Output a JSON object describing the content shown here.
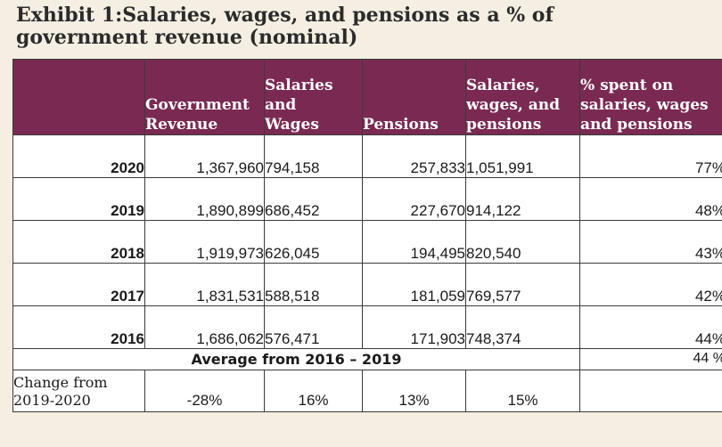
{
  "title": {
    "line1": "Exhibit 1:Salaries, wages, and pensions as a % of",
    "line2": "government revenue (nominal)"
  },
  "colors": {
    "header_background": "#7a2a52",
    "header_text": "#ffffff",
    "page_background": "#f5efe3"
  },
  "table": {
    "headers": [
      {
        "lines": []
      },
      {
        "lines": [
          "Government",
          "Revenue"
        ]
      },
      {
        "lines": [
          "Salaries",
          "and",
          "Wages"
        ]
      },
      {
        "lines": [
          "Pensions"
        ]
      },
      {
        "lines": [
          "Salaries,",
          "wages, and",
          "pensions"
        ]
      },
      {
        "lines": [
          "% spent on",
          "salaries, wages",
          "and pensions"
        ]
      }
    ],
    "rows": [
      {
        "year": "2020",
        "revenue": "1,367,960",
        "salaries": "794,158",
        "pensions": "257,833",
        "total": "1,051,991",
        "pct": "77%"
      },
      {
        "year": "2019",
        "revenue": "1,890,899",
        "salaries": "686,452",
        "pensions": "227,670",
        "total": "914,122",
        "pct": "48%"
      },
      {
        "year": "2018",
        "revenue": "1,919,973",
        "salaries": "626,045",
        "pensions": "194,495",
        "total": "820,540",
        "pct": "43%"
      },
      {
        "year": "2017",
        "revenue": "1,831,531",
        "salaries": "588,518",
        "pensions": "181,059",
        "total": "769,577",
        "pct": "42%"
      },
      {
        "year": "2016",
        "revenue": "1,686,062",
        "salaries": "576,471",
        "pensions": "171,903",
        "total": "748,374",
        "pct": "44%"
      }
    ],
    "average": {
      "label": "Average from 2016 – 2019",
      "value": "44 %"
    },
    "change": {
      "label_line1": "Change from",
      "label_line2": "2019-2020",
      "revenue": "-28%",
      "salaries": "16%",
      "pensions": "13%",
      "total": "15%",
      "pct": ""
    }
  }
}
